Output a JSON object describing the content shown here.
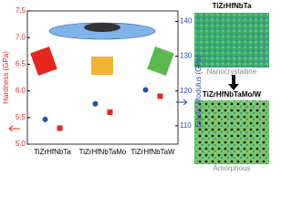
{
  "chart_data": {
    "type": "scatter",
    "categories": [
      "TiZrHfNbTa",
      "TiZrHfNbTaMo",
      "TiZrHfNbTaW"
    ],
    "ylabel": "Hardness (GPa)",
    "y2label": "Elastic Modulus (GPa)",
    "ylim": [
      5.0,
      7.5
    ],
    "yticks": [
      {
        "value": 5,
        "label": "5.0"
      },
      5.5,
      {
        "value": 6,
        "label": "6.0"
      },
      6.5,
      {
        "value": 7,
        "label": "7.0"
      },
      7.5
    ],
    "y2lim": [
      104.7,
      143
    ],
    "y2ticks": [
      110,
      120,
      130,
      140
    ],
    "series": [
      {
        "color": "#e8251f",
        "marker": "square",
        "axis": "y",
        "values": [
          5.3,
          5.6,
          5.9
        ]
      },
      {
        "color": "#2b4ea2",
        "marker": "circle",
        "axis": "y2",
        "values": [
          111.8,
          116.3,
          120.3
        ]
      }
    ],
    "annotations": [
      "TiZrHfNbTa",
      "Nanocrystalline",
      "TiZrHfNbTaMo/W",
      "Amorphous"
    ]
  }
}
